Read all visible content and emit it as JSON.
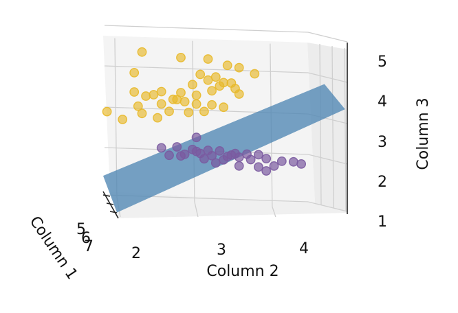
{
  "chart_data": {
    "type": "scatter",
    "projection": "3d",
    "title": "",
    "xlabel": "Column 2",
    "ylabel": "Column 1",
    "zlabel": "Column 3",
    "x_ticks": [
      "2",
      "3",
      "4"
    ],
    "y_ticks": [
      "5",
      "6",
      "7"
    ],
    "z_ticks": [
      "1",
      "2",
      "3",
      "4",
      "5"
    ],
    "xlim": [
      1.85,
      4.55
    ],
    "zlim": [
      1.0,
      5.4
    ],
    "grid": true,
    "colors": {
      "series_upper": "#e8b92a",
      "series_lower": "#7a5aa0",
      "plane": "#4f86b4",
      "axis": "#222222",
      "grid": "#cfcfcf"
    },
    "plane": {
      "x": [
        1.85,
        4.3
      ],
      "z_front": [
        1.3,
        4.1
      ],
      "z_back": [
        1.8,
        4.7
      ]
    },
    "series": [
      {
        "points": [
          [
            2.35,
            5.15
          ],
          [
            3.2,
            5.05
          ],
          [
            2.85,
            5.05
          ],
          [
            3.45,
            4.9
          ],
          [
            3.6,
            4.85
          ],
          [
            3.8,
            4.7
          ],
          [
            2.25,
            4.55
          ],
          [
            3.1,
            4.6
          ],
          [
            3.3,
            4.55
          ],
          [
            3.2,
            4.45
          ],
          [
            3.4,
            4.4
          ],
          [
            3.5,
            4.4
          ],
          [
            3.35,
            4.3
          ],
          [
            3.55,
            4.25
          ],
          [
            3.0,
            4.3
          ],
          [
            3.25,
            4.15
          ],
          [
            3.6,
            4.1
          ],
          [
            3.05,
            4.0
          ],
          [
            2.6,
            4.05
          ],
          [
            2.85,
            4.05
          ],
          [
            2.25,
            4.0
          ],
          [
            2.5,
            3.95
          ],
          [
            2.4,
            3.9
          ],
          [
            2.75,
            3.85
          ],
          [
            2.9,
            3.8
          ],
          [
            3.05,
            3.75
          ],
          [
            3.25,
            3.75
          ],
          [
            3.4,
            3.7
          ],
          [
            2.6,
            3.7
          ],
          [
            2.3,
            3.6
          ],
          [
            2.7,
            3.5
          ],
          [
            2.35,
            3.4
          ],
          [
            2.95,
            3.5
          ],
          [
            1.9,
            3.4
          ],
          [
            2.1,
            3.2
          ],
          [
            2.55,
            3.3
          ],
          [
            3.15,
            3.55
          ],
          [
            2.8,
            3.85
          ]
        ]
      },
      {
        "points": [
          [
            3.05,
            2.8
          ],
          [
            2.6,
            2.45
          ],
          [
            2.8,
            2.5
          ],
          [
            3.0,
            2.45
          ],
          [
            3.2,
            2.45
          ],
          [
            3.35,
            2.45
          ],
          [
            3.55,
            2.4
          ],
          [
            3.7,
            2.4
          ],
          [
            3.85,
            2.4
          ],
          [
            2.9,
            2.3
          ],
          [
            3.1,
            2.35
          ],
          [
            3.25,
            2.3
          ],
          [
            3.45,
            2.3
          ],
          [
            3.6,
            2.3
          ],
          [
            3.95,
            2.3
          ],
          [
            2.7,
            2.25
          ],
          [
            3.15,
            2.2
          ],
          [
            3.4,
            2.2
          ],
          [
            3.75,
            2.25
          ],
          [
            4.15,
            2.25
          ],
          [
            4.3,
            2.25
          ],
          [
            2.85,
            2.25
          ],
          [
            3.3,
            2.1
          ],
          [
            3.6,
            2.05
          ],
          [
            3.85,
            2.05
          ],
          [
            4.05,
            2.1
          ],
          [
            4.4,
            2.2
          ],
          [
            3.95,
            1.95
          ],
          [
            3.05,
            2.4
          ],
          [
            3.5,
            2.35
          ]
        ]
      }
    ]
  }
}
